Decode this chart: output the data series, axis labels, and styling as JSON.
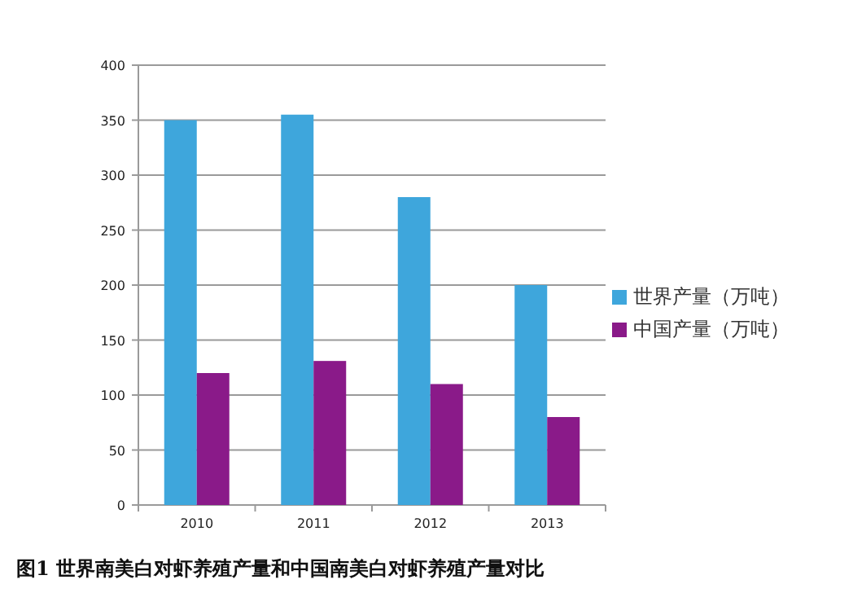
{
  "chart_data": {
    "type": "bar",
    "categories": [
      "2010",
      "2011",
      "2012",
      "2013"
    ],
    "series": [
      {
        "name": "世界产量（万吨）",
        "color": "#3ea6dc",
        "values": [
          350,
          355,
          280,
          200
        ]
      },
      {
        "name": "中国产量（万吨）",
        "color": "#8a1a89",
        "values": [
          120,
          131,
          110,
          80
        ]
      }
    ],
    "ylim": [
      0,
      400
    ],
    "yticks": [
      0,
      50,
      100,
      150,
      200,
      250,
      300,
      350,
      400
    ],
    "grid": "y",
    "legend": "right",
    "annotations": [
      "图1 世界南美白对虾养殖产量和中国南美白对虾养殖产量对比"
    ]
  }
}
